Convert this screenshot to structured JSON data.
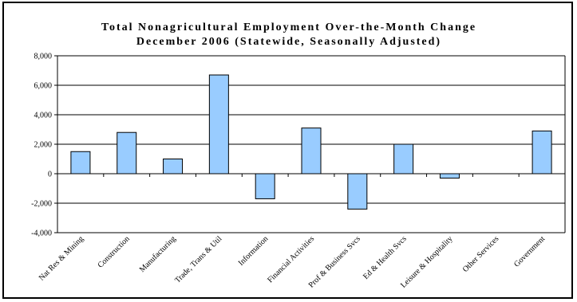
{
  "chart_data": {
    "type": "bar",
    "title": "Total Nonagricultural Employment Over-the-Month Change",
    "subtitle": "December 2006 (Statewide, Seasonally Adjusted)",
    "categories": [
      "Nat Res & Mining",
      "Construction",
      "Manufacturing",
      "Trade, Trans & Util",
      "Information",
      "Financial Activities",
      "Prof & Business Svcs",
      "Ed & Health Svcs",
      "Leisure & Hospitality",
      "Other Services",
      "Government"
    ],
    "values": [
      1500,
      2800,
      1000,
      6700,
      -1700,
      3100,
      -2400,
      2000,
      -300,
      0,
      2900
    ],
    "ylim": [
      -4000,
      8000
    ],
    "yticks": [
      8000,
      6000,
      4000,
      2000,
      0,
      -2000,
      -4000
    ],
    "ytick_labels": [
      "8,000",
      "6,000",
      "4,000",
      "2,000",
      "0",
      "-2,000",
      "-4,000"
    ],
    "grid": true,
    "legend": false,
    "xlabel": "",
    "ylabel": "",
    "colors": {
      "bar_fill": "#99ccff",
      "bar_stroke": "#000000",
      "grid": "#000000",
      "axis": "#000000"
    }
  }
}
